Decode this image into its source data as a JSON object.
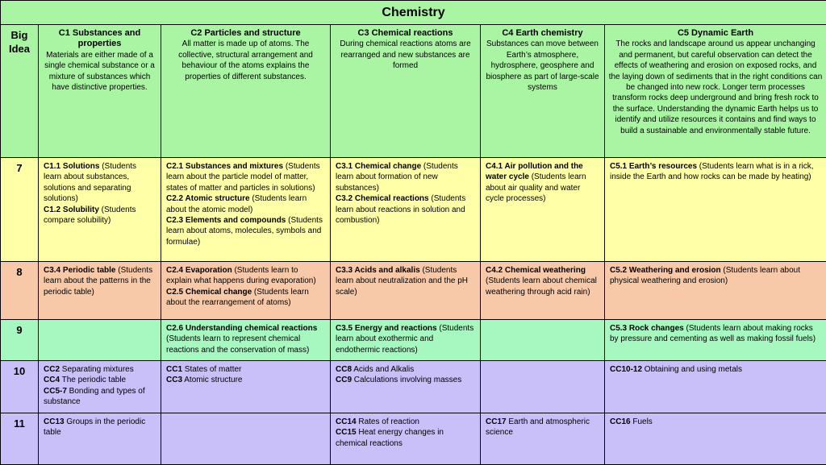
{
  "title": "Chemistry",
  "big_idea": {
    "label": "Big Idea",
    "columns": [
      {
        "head": "C1 Substances and properties",
        "body": "Materials are either made of a single chemical substance or a mixture of substances which have distinctive properties."
      },
      {
        "head": "C2 Particles and structure",
        "body": "All matter is made up of atoms. The collective, structural arrangement and behaviour of the atoms explains the properties of different substances."
      },
      {
        "head": "C3 Chemical reactions",
        "body": "During chemical reactions atoms are rearranged and new substances are formed"
      },
      {
        "head": "C4 Earth chemistry",
        "body": "Substances can move between Earth’s atmosphere, hydrosphere, geosphere and biosphere as part of large-scale systems"
      },
      {
        "head": "C5 Dynamic Earth",
        "body": "The rocks and landscape around us appear unchanging and permanent, but careful observation can detect the effects of weathering and erosion on exposed rocks, and the laying down of sediments that in the right conditions can be changed into new rock. Longer term processes transform rocks deep underground and bring fresh rock to the surface. Understanding the dynamic Earth helps us to identify and utilize resources it contains and find ways to build a sustainable and environmentally stable future."
      }
    ]
  },
  "rows": [
    {
      "year": "7",
      "cells": [
        [
          {
            "b": "C1.1 Solutions",
            "t": " (Students learn about substances, solutions and separating solutions)"
          },
          {
            "b": "C1.2 Solubility",
            "t": " (Students compare solubility)"
          }
        ],
        [
          {
            "b": "C2.1 Substances and mixtures",
            "t": " (Students learn about the particle model of matter, states of matter and particles in solutions)"
          },
          {
            "b": "C2.2 Atomic structure",
            "t": " (Students learn about the atomic model)"
          },
          {
            "b": "C2.3 Elements and compounds",
            "t": " (Students learn about atoms, molecules, symbols and formulae)"
          }
        ],
        [
          {
            "b": "C3.1 Chemical change",
            "t": " (Students learn about formation of new substances)"
          },
          {
            "b": "C3.2 Chemical reactions",
            "t": " (Students learn about reactions in solution and combustion)"
          }
        ],
        [
          {
            "b": "C4.1 Air pollution and the water cycle",
            "t": " (Students learn about air quality and water cycle processes)"
          }
        ],
        [
          {
            "b": "C5.1 Earth’s resources",
            "t": " (Students learn what is in a rick, inside the Earth and how rocks can be made by heating)"
          }
        ]
      ]
    },
    {
      "year": "8",
      "cells": [
        [
          {
            "b": "C3.4 Periodic table",
            "t": " (Students learn about the patterns in the periodic table)"
          }
        ],
        [
          {
            "b": "C2.4 Evaporation",
            "t": " (Students learn to explain what happens during evaporation)"
          },
          {
            "b": "C2.5 Chemical change",
            "t": " (Students learn about the rearrangement of atoms)"
          }
        ],
        [
          {
            "b": "C3.3 Acids and alkalis",
            "t": " (Students learn about neutralization and the pH scale)"
          }
        ],
        [
          {
            "b": "C4.2 Chemical weathering",
            "t": " (Students learn about chemical weathering through acid rain)"
          }
        ],
        [
          {
            "b": "C5.2 Weathering and erosion",
            "t": " (Students learn about physical weathering and erosion)"
          }
        ]
      ]
    },
    {
      "year": "9",
      "cells": [
        [],
        [
          {
            "b": "C2.6 Understanding chemical reactions",
            "t": " (Students learn to represent chemical reactions and the conservation of mass)"
          }
        ],
        [
          {
            "b": "C3.5 Energy and reactions",
            "t": " (Students learn about exothermic and endothermic reactions)"
          }
        ],
        [],
        [
          {
            "b": "C5.3 Rock changes",
            "t": " (Students learn about making rocks by pressure and cementing as well as making fossil fuels)"
          }
        ]
      ]
    },
    {
      "year": "10",
      "cells": [
        [
          {
            "b": "CC2",
            "t": " Separating mixtures"
          },
          {
            "b": "CC4",
            "t": " The periodic table"
          },
          {
            "b": "CC5-7",
            "t": " Bonding and types of substance"
          }
        ],
        [
          {
            "b": "CC1",
            "t": " States of matter"
          },
          {
            "b": "CC3",
            "t": " Atomic structure"
          }
        ],
        [
          {
            "b": "CC8",
            "t": " Acids and Alkalis"
          },
          {
            "b": "CC9",
            "t": " Calculations involving masses"
          }
        ],
        [],
        [
          {
            "b": "CC10-12",
            "t": " Obtaining and using metals"
          }
        ]
      ]
    },
    {
      "year": "11",
      "cells": [
        [
          {
            "b": "CC13",
            "t": " Groups in the periodic table"
          }
        ],
        [],
        [
          {
            "b": "CC14",
            "t": " Rates of reaction"
          },
          {
            "b": "CC15",
            "t": " Heat energy changes in chemical reactions"
          }
        ],
        [
          {
            "b": "CC17",
            "t": " Earth and atmospheric science"
          }
        ],
        [
          {
            "b": "CC16",
            "t": " Fuels"
          }
        ]
      ]
    }
  ]
}
